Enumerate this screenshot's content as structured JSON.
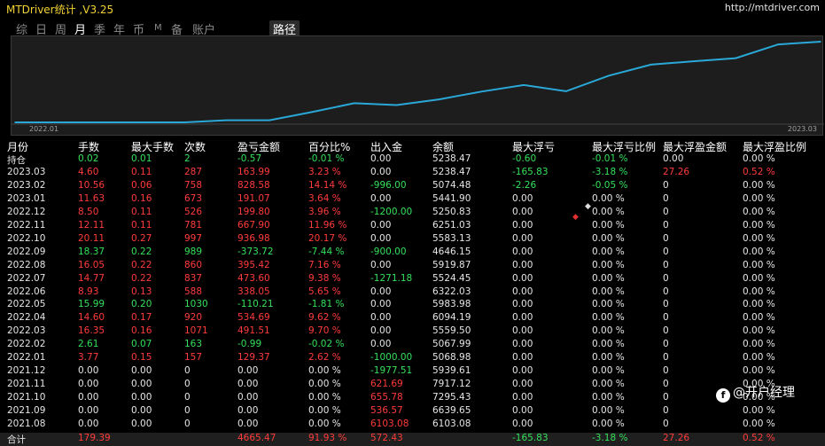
{
  "app": {
    "title": "MTDriver统计 ,V3.25",
    "url": "http://mtdriver.com"
  },
  "tabs": [
    {
      "label": "综",
      "active": false
    },
    {
      "label": "日",
      "active": false
    },
    {
      "label": "周",
      "active": false
    },
    {
      "label": "月",
      "active": true
    },
    {
      "label": "季",
      "active": false
    },
    {
      "label": "年",
      "active": false
    },
    {
      "label": "币",
      "active": false
    },
    {
      "label": "M",
      "active": false
    },
    {
      "label": "备",
      "active": false
    },
    {
      "label": "账户",
      "active": false
    }
  ],
  "path_button": "路径",
  "chart_data": {
    "type": "line",
    "x_start_label": "2022.01",
    "x_end_label": "2023.03",
    "x": [
      "2021.08",
      "2021.09",
      "2021.10",
      "2021.11",
      "2021.12",
      "2022.01",
      "2022.02",
      "2022.03",
      "2022.04",
      "2022.05",
      "2022.06",
      "2022.07",
      "2022.08",
      "2022.09",
      "2022.10",
      "2022.11",
      "2022.12",
      "2023.01",
      "2023.02",
      "2023.03"
    ],
    "y": [
      6103.08,
      6639.65,
      7295.43,
      7917.12,
      5939.61,
      5068.98,
      5067.99,
      5559.5,
      6094.19,
      5983.98,
      6322.03,
      5524.45,
      5919.87,
      4646.15,
      5583.13,
      6251.03,
      5250.83,
      5441.9,
      5074.48,
      5238.47
    ],
    "color": "#2aa8d8"
  },
  "columns": [
    "月份",
    "手数",
    "最大手数",
    "次数",
    "盈亏金额",
    "百分比%",
    "出入金",
    "余额",
    "最大浮亏",
    "最大浮亏比例",
    "最大浮盈金额",
    "最大浮盈比例"
  ],
  "rows": [
    {
      "c": [
        "持仓",
        "0.02",
        "0.01",
        "2",
        "-0.57",
        "-0.01 %",
        "0.00",
        "5238.47",
        "-0.60",
        "-0.01 %",
        "0.00",
        "0.00 %"
      ],
      "s": [
        "neu",
        "pos",
        "pos",
        "pos",
        "pos",
        "pos",
        "neu",
        "neu",
        "pos",
        "pos",
        "neu",
        "neu"
      ]
    },
    {
      "c": [
        "2023.03",
        "4.60",
        "0.11",
        "287",
        "163.99",
        "3.23 %",
        "0.00",
        "5238.47",
        "-165.83",
        "-3.18 %",
        "27.26",
        "0.52 %"
      ],
      "s": [
        "neu",
        "neg",
        "neg",
        "neg",
        "neg",
        "neg",
        "neu",
        "neu",
        "pos",
        "pos",
        "neg",
        "neg"
      ]
    },
    {
      "c": [
        "2023.02",
        "10.56",
        "0.06",
        "758",
        "828.58",
        "14.14 %",
        "-996.00",
        "5074.48",
        "-2.26",
        "-0.05 %",
        "0",
        "0.00 %"
      ],
      "s": [
        "neu",
        "neg",
        "neg",
        "neg",
        "neg",
        "neg",
        "pos",
        "neu",
        "pos",
        "pos",
        "neu",
        "neu"
      ]
    },
    {
      "c": [
        "2023.01",
        "11.63",
        "0.16",
        "673",
        "191.07",
        "3.64 %",
        "0.00",
        "5441.90",
        "0.00",
        "0.00 %",
        "0",
        "0.00 %"
      ],
      "s": [
        "neu",
        "neg",
        "neg",
        "neg",
        "neg",
        "neg",
        "neu",
        "neu",
        "neu",
        "neu",
        "neu",
        "neu"
      ]
    },
    {
      "c": [
        "2022.12",
        "8.50",
        "0.11",
        "526",
        "199.80",
        "3.96 %",
        "-1200.00",
        "5250.83",
        "0.00",
        "0.00 %",
        "0",
        "0.00 %"
      ],
      "s": [
        "neu",
        "neg",
        "neg",
        "neg",
        "neg",
        "neg",
        "pos",
        "neu",
        "neu",
        "neu",
        "neu",
        "neu"
      ]
    },
    {
      "c": [
        "2022.11",
        "12.11",
        "0.11",
        "781",
        "667.90",
        "11.96 %",
        "0.00",
        "6251.03",
        "0.00",
        "0.00 %",
        "0",
        "0.00 %"
      ],
      "s": [
        "neu",
        "neg",
        "neg",
        "neg",
        "neg",
        "neg",
        "neu",
        "neu",
        "neu",
        "neu",
        "neu",
        "neu"
      ]
    },
    {
      "c": [
        "2022.10",
        "20.11",
        "0.27",
        "997",
        "936.98",
        "20.17 %",
        "0.00",
        "5583.13",
        "0.00",
        "0.00 %",
        "0",
        "0.00 %"
      ],
      "s": [
        "neu",
        "neg",
        "neg",
        "neg",
        "neg",
        "neg",
        "neu",
        "neu",
        "neu",
        "neu",
        "neu",
        "neu"
      ]
    },
    {
      "c": [
        "2022.09",
        "18.37",
        "0.22",
        "989",
        "-373.72",
        "-7.44 %",
        "-900.00",
        "4646.15",
        "0.00",
        "0.00 %",
        "0",
        "0.00 %"
      ],
      "s": [
        "neu",
        "pos",
        "pos",
        "pos",
        "pos",
        "pos",
        "pos",
        "neu",
        "neu",
        "neu",
        "neu",
        "neu"
      ]
    },
    {
      "c": [
        "2022.08",
        "16.05",
        "0.22",
        "860",
        "395.42",
        "7.16 %",
        "0.00",
        "5919.87",
        "0.00",
        "0.00 %",
        "0",
        "0.00 %"
      ],
      "s": [
        "neu",
        "neg",
        "neg",
        "neg",
        "neg",
        "neg",
        "neu",
        "neu",
        "neu",
        "neu",
        "neu",
        "neu"
      ]
    },
    {
      "c": [
        "2022.07",
        "14.77",
        "0.22",
        "837",
        "473.60",
        "9.38 %",
        "-1271.18",
        "5524.45",
        "0.00",
        "0.00 %",
        "0",
        "0.00 %"
      ],
      "s": [
        "neu",
        "neg",
        "neg",
        "neg",
        "neg",
        "neg",
        "pos",
        "neu",
        "neu",
        "neu",
        "neu",
        "neu"
      ]
    },
    {
      "c": [
        "2022.06",
        "8.93",
        "0.13",
        "588",
        "338.05",
        "5.65 %",
        "0.00",
        "6322.03",
        "0.00",
        "0.00 %",
        "0",
        "0.00 %"
      ],
      "s": [
        "neu",
        "neg",
        "neg",
        "neg",
        "neg",
        "neg",
        "neu",
        "neu",
        "neu",
        "neu",
        "neu",
        "neu"
      ]
    },
    {
      "c": [
        "2022.05",
        "15.99",
        "0.20",
        "1030",
        "-110.21",
        "-1.81 %",
        "0.00",
        "5983.98",
        "0.00",
        "0.00 %",
        "0",
        "0.00 %"
      ],
      "s": [
        "neu",
        "pos",
        "pos",
        "pos",
        "pos",
        "pos",
        "neu",
        "neu",
        "neu",
        "neu",
        "neu",
        "neu"
      ]
    },
    {
      "c": [
        "2022.04",
        "14.60",
        "0.17",
        "920",
        "534.69",
        "9.62 %",
        "0.00",
        "6094.19",
        "0.00",
        "0.00 %",
        "0",
        "0.00 %"
      ],
      "s": [
        "neu",
        "neg",
        "neg",
        "neg",
        "neg",
        "neg",
        "neu",
        "neu",
        "neu",
        "neu",
        "neu",
        "neu"
      ]
    },
    {
      "c": [
        "2022.03",
        "16.35",
        "0.16",
        "1071",
        "491.51",
        "9.70 %",
        "0.00",
        "5559.50",
        "0.00",
        "0.00 %",
        "0",
        "0.00 %"
      ],
      "s": [
        "neu",
        "neg",
        "neg",
        "neg",
        "neg",
        "neg",
        "neu",
        "neu",
        "neu",
        "neu",
        "neu",
        "neu"
      ]
    },
    {
      "c": [
        "2022.02",
        "2.61",
        "0.07",
        "163",
        "-0.99",
        "-0.02 %",
        "0.00",
        "5067.99",
        "0.00",
        "0.00 %",
        "0",
        "0.00 %"
      ],
      "s": [
        "neu",
        "pos",
        "pos",
        "pos",
        "pos",
        "pos",
        "neu",
        "neu",
        "neu",
        "neu",
        "neu",
        "neu"
      ]
    },
    {
      "c": [
        "2022.01",
        "3.77",
        "0.15",
        "157",
        "129.37",
        "2.62 %",
        "-1000.00",
        "5068.98",
        "0.00",
        "0.00 %",
        "0",
        "0.00 %"
      ],
      "s": [
        "neu",
        "neg",
        "neg",
        "neg",
        "neg",
        "neg",
        "pos",
        "neu",
        "neu",
        "neu",
        "neu",
        "neu"
      ]
    },
    {
      "c": [
        "2021.12",
        "0.00",
        "0.00",
        "0",
        "0.00",
        "0.00 %",
        "-1977.51",
        "5939.61",
        "0.00",
        "0.00 %",
        "0",
        "0.00 %"
      ],
      "s": [
        "neu",
        "neu",
        "neu",
        "neu",
        "neu",
        "neu",
        "pos",
        "neu",
        "neu",
        "neu",
        "neu",
        "neu"
      ]
    },
    {
      "c": [
        "2021.11",
        "0.00",
        "0.00",
        "0",
        "0.00",
        "0.00 %",
        "621.69",
        "7917.12",
        "0.00",
        "0.00 %",
        "0",
        "0.00 %"
      ],
      "s": [
        "neu",
        "neu",
        "neu",
        "neu",
        "neu",
        "neu",
        "neg",
        "neu",
        "neu",
        "neu",
        "neu",
        "neu"
      ]
    },
    {
      "c": [
        "2021.10",
        "0.00",
        "0.00",
        "0",
        "0.00",
        "0.00 %",
        "655.78",
        "7295.43",
        "0.00",
        "0.00 %",
        "0",
        "0.00 %"
      ],
      "s": [
        "neu",
        "neu",
        "neu",
        "neu",
        "neu",
        "neu",
        "neg",
        "neu",
        "neu",
        "neu",
        "neu",
        "neu"
      ]
    },
    {
      "c": [
        "2021.09",
        "0.00",
        "0.00",
        "0",
        "0.00",
        "0.00 %",
        "536.57",
        "6639.65",
        "0.00",
        "0.00 %",
        "0",
        "0.00 %"
      ],
      "s": [
        "neu",
        "neu",
        "neu",
        "neu",
        "neu",
        "neu",
        "neg",
        "neu",
        "neu",
        "neu",
        "neu",
        "neu"
      ]
    },
    {
      "c": [
        "2021.08",
        "0.00",
        "0.00",
        "0",
        "0.00",
        "0.00 %",
        "6103.08",
        "6103.08",
        "0.00",
        "0.00 %",
        "0",
        "0.00 %"
      ],
      "s": [
        "neu",
        "neu",
        "neu",
        "neu",
        "neu",
        "neu",
        "neg",
        "neu",
        "neu",
        "neu",
        "neu",
        "neu"
      ]
    }
  ],
  "total": {
    "c": [
      "合计",
      "179.39",
      "",
      "",
      "4665.47",
      "91.93 %",
      "572.43",
      "",
      "-165.83",
      "-3.18 %",
      "27.26",
      "0.52 %"
    ],
    "s": [
      "neu",
      "neg",
      "neu",
      "neu",
      "neg",
      "neg",
      "neg",
      "neu",
      "pos",
      "pos",
      "neg",
      "neg"
    ]
  },
  "watermark": "@开户经理",
  "watermark_icon": "f"
}
